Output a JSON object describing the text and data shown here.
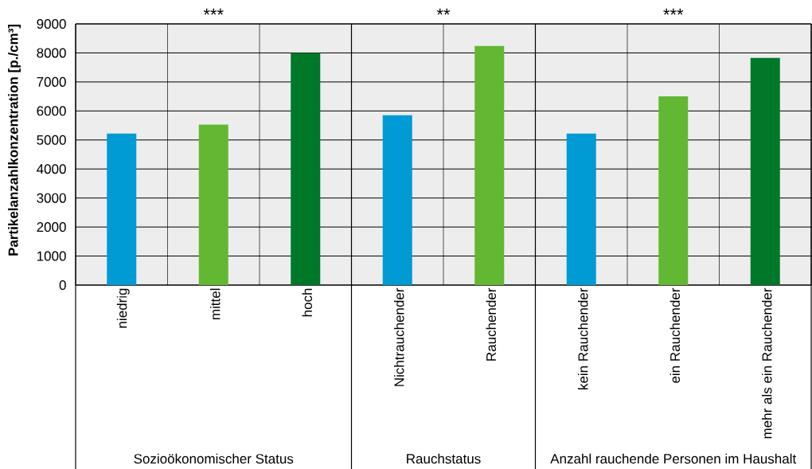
{
  "chart_data": {
    "type": "bar",
    "categories": [
      "niedrig",
      "mittel",
      "hoch",
      "Nichtrauchender",
      "Rauchender",
      "kein Rauchender",
      "ein Rauchender",
      "mehr als ein Rauchender"
    ],
    "values": [
      5220,
      5530,
      8000,
      5850,
      8240,
      5220,
      6500,
      7830
    ],
    "colors": [
      "#009ad4",
      "#62b832",
      "#00782a",
      "#009ad4",
      "#62b832",
      "#009ad4",
      "#62b832",
      "#00782a"
    ],
    "ylabel": "Partikelanzahlkonzentration [p./cm³]",
    "ylim": [
      0,
      9000
    ],
    "yticks": [
      0,
      1000,
      2000,
      3000,
      4000,
      5000,
      6000,
      7000,
      8000,
      9000
    ],
    "grid": true,
    "annotations": [
      "***",
      "**",
      "***",
      "Sozioökonomischer Status",
      "Rauchstatus",
      "Anzahl rauchende Personen im Haushalt"
    ]
  }
}
